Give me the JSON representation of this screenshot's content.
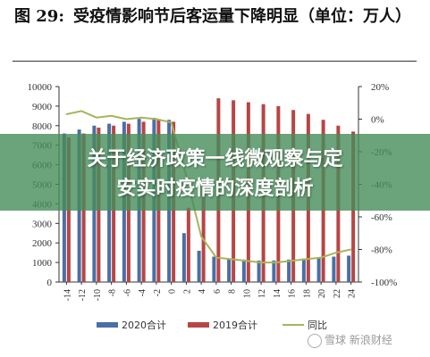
{
  "header": {
    "number": "图 29:",
    "text": "受疫情影响节后客运量下降明显（单位：万人）"
  },
  "banner": {
    "line1": "关于经济政策一线微观察与定",
    "line2": "安实时疫情的深度剖析"
  },
  "watermark": {
    "text": "雪球  新浪财经"
  },
  "colors": {
    "bar_2020": "#4a6fa5",
    "bar_2019": "#b84545",
    "line_yoy": "#a8b45a",
    "text": "#333333"
  },
  "chart_data": {
    "type": "bar",
    "title": "受疫情影响节后客运量下降明显（单位：万人）",
    "categories": [
      "-14",
      "-12",
      "-10",
      "-8",
      "-6",
      "-4",
      "-2",
      "0",
      "2",
      "4",
      "6",
      "8",
      "10",
      "12",
      "14",
      "16",
      "18",
      "20",
      "22",
      "24"
    ],
    "series": [
      {
        "name": "2020合计",
        "type": "bar",
        "axis": "left",
        "values": [
          7600,
          7800,
          8000,
          8100,
          8200,
          8350,
          8400,
          8300,
          2500,
          1600,
          1300,
          1200,
          1150,
          1100,
          1100,
          1150,
          1200,
          1250,
          1300,
          1350
        ]
      },
      {
        "name": "2019合计",
        "type": "bar",
        "axis": "left",
        "values": [
          7400,
          7600,
          7900,
          8000,
          8100,
          8200,
          8300,
          8200,
          3800,
          5200,
          9400,
          9300,
          9200,
          9100,
          9000,
          8800,
          8600,
          8300,
          8000,
          7700
        ]
      },
      {
        "name": "同比",
        "type": "line",
        "axis": "right",
        "unit": "%",
        "values": [
          3,
          5,
          1,
          2,
          0,
          1,
          0,
          -2,
          -35,
          -72,
          -85,
          -86,
          -87,
          -88,
          -88,
          -87,
          -86,
          -85,
          -82,
          -80
        ]
      }
    ],
    "left_axis": {
      "ylim": [
        0,
        10000
      ],
      "ticks": [
        0,
        1000,
        2000,
        3000,
        4000,
        5000,
        6000,
        7000,
        8000,
        9000,
        10000
      ]
    },
    "right_axis": {
      "ylim": [
        -100,
        20
      ],
      "ticks": [
        "20%",
        "0%",
        "-20%",
        "-40%",
        "-60%",
        "-80%",
        "-100%"
      ],
      "tick_values": [
        20,
        0,
        -20,
        -40,
        -60,
        -80,
        -100
      ]
    },
    "legend": {
      "placement": "bottom",
      "entries": [
        "2020合计",
        "2019合计",
        "同比"
      ]
    },
    "grid": false
  }
}
